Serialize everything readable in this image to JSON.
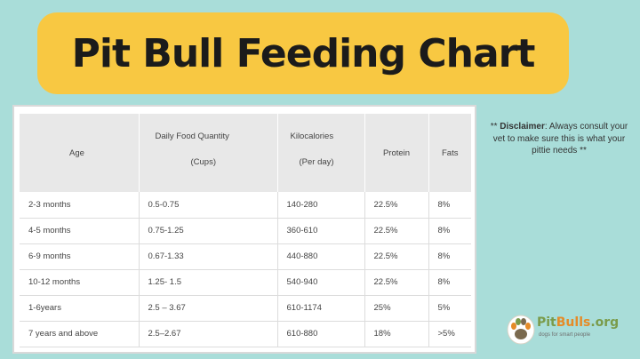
{
  "title": "Pit Bull Feeding Chart",
  "table": {
    "headers": {
      "age": "Age",
      "food": "Daily Food Quantity",
      "food_unit": "(Cups)",
      "kcal": "Kilocalories",
      "kcal_unit": "(Per day)",
      "protein": "Protein",
      "fats": "Fats"
    },
    "rows": [
      {
        "age": "2-3 months",
        "food": "0.5-0.75",
        "kcal": "140-280",
        "protein": "22.5%",
        "fats": "8%"
      },
      {
        "age": "4-5 months",
        "food": "0.75-1.25",
        "kcal": "360-610",
        "protein": "22.5%",
        "fats": "8%"
      },
      {
        "age": "6-9 months",
        "food": "0.67-1.33",
        "kcal": "440-880",
        "protein": "22.5%",
        "fats": "8%"
      },
      {
        "age": "10-12 months",
        "food": "1.25- 1.5",
        "kcal": "540-940",
        "protein": "22.5%",
        "fats": "8%"
      },
      {
        "age": "1-6years",
        "food": "2.5 – 3.67",
        "kcal": "610-1174",
        "protein": "25%",
        "fats": "5%"
      },
      {
        "age": "7 years and above",
        "food": "2.5–2.67",
        "kcal": "610-880",
        "protein": "18%",
        "fats": ">5%"
      }
    ]
  },
  "disclaimer": {
    "prefix": "** ",
    "label": "Disclaimer",
    "text": ": Always consult your vet to make sure this is what your pittie needs **"
  },
  "logo": {
    "name_a": "Pit",
    "name_b": "Bulls",
    "name_c": ".org",
    "tagline": "dogs for smart people"
  },
  "colors": {
    "background": "#a9ddd9",
    "banner": "#f8c842",
    "header_row": "#e8e8e8"
  }
}
